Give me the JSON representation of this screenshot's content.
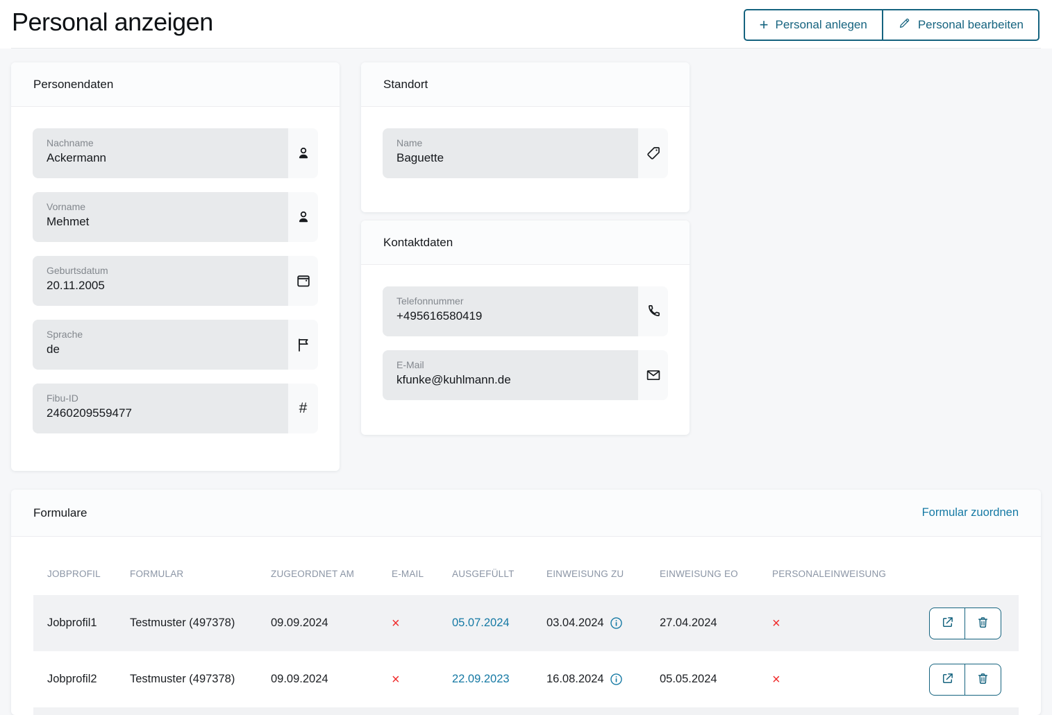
{
  "page": {
    "title": "Personal anzeigen"
  },
  "header": {
    "create_button": {
      "label": "Personal anlegen",
      "icon": "plus-icon"
    },
    "edit_button": {
      "label": "Personal bearbeiten",
      "icon": "pencil-icon"
    }
  },
  "cards": {
    "personendaten": {
      "title": "Personendaten",
      "fields": [
        {
          "label": "Nachname",
          "value": "Ackermann",
          "icon": "person-icon"
        },
        {
          "label": "Vorname",
          "value": "Mehmet",
          "icon": "person-icon"
        },
        {
          "label": "Geburtsdatum",
          "value": "20.11.2005",
          "icon": "calendar-icon"
        },
        {
          "label": "Sprache",
          "value": "de",
          "icon": "flag-icon"
        },
        {
          "label": "Fibu-ID",
          "value": "2460209559477",
          "icon": "hash-icon"
        }
      ]
    },
    "standort": {
      "title": "Standort",
      "fields": [
        {
          "label": "Name",
          "value": "Baguette",
          "icon": "tag-icon"
        }
      ]
    },
    "kontaktdaten": {
      "title": "Kontaktdaten",
      "fields": [
        {
          "label": "Telefonnummer",
          "value": "+495616580419",
          "icon": "phone-icon"
        },
        {
          "label": "E-Mail",
          "value": "kfunke@kuhlmann.de",
          "icon": "envelope-icon"
        }
      ]
    }
  },
  "formulare": {
    "title": "Formulare",
    "assign_link": "Formular zuordnen",
    "columns": [
      "JOBPROFIL",
      "FORMULAR",
      "ZUGEORDNET AM",
      "E-MAIL",
      "AUSGEFÜLLT",
      "EINWEISUNG ZU",
      "EINWEISUNG EO",
      "PERSONALEINWEISUNG"
    ],
    "rows": [
      {
        "jobprofil": "Jobprofil1",
        "formular": "Testmuster (497378)",
        "zugeordnet_am": "09.09.2024",
        "email": "×",
        "ausgefuellt": "05.07.2024",
        "einweisung_zu": "03.04.2024",
        "einweisung_eo": "27.04.2024",
        "personaleinweisung": "×",
        "actions": [
          "open-external-icon",
          "trash-icon"
        ]
      },
      {
        "jobprofil": "Jobprofil2",
        "formular": "Testmuster (497378)",
        "zugeordnet_am": "09.09.2024",
        "email": "×",
        "ausgefuellt": "22.09.2023",
        "einweisung_zu": "16.08.2024",
        "einweisung_eo": "05.05.2024",
        "personaleinweisung": "×",
        "actions": [
          "open-external-icon",
          "trash-icon"
        ]
      }
    ]
  },
  "colors": {
    "accent": "#15637f",
    "link": "#1579a4",
    "negative": "#f02b2b",
    "field_background": "#e8eaec",
    "row_alternate": "#f1f2f4"
  }
}
